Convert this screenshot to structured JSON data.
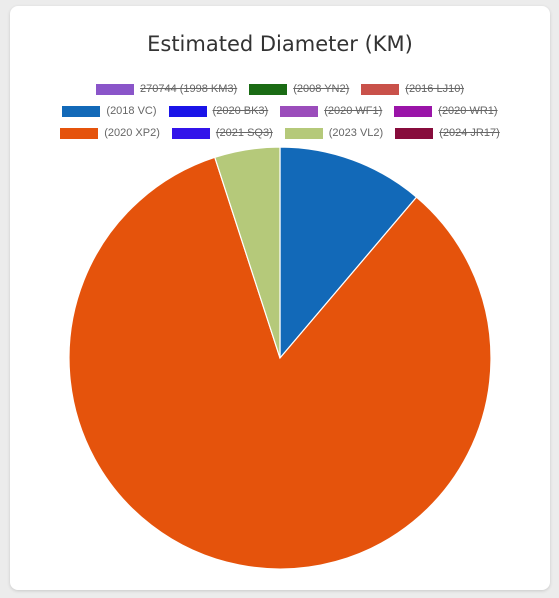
{
  "chart_data": {
    "type": "pie",
    "title": "Estimated Diameter (KM)",
    "legend_position": "top",
    "series": [
      {
        "name": "270744 (1998 KM3)",
        "color": "#8a55c9",
        "hidden": true,
        "value": null
      },
      {
        "name": "(2008 YN2)",
        "color": "#1a6b14",
        "hidden": true,
        "value": null
      },
      {
        "name": "(2016 LJ10)",
        "color": "#c9514a",
        "hidden": true,
        "value": null
      },
      {
        "name": "(2018 VC)",
        "color": "#1269b8",
        "hidden": false,
        "value": 0.112
      },
      {
        "name": "(2020 BK3)",
        "color": "#1a14e8",
        "hidden": true,
        "value": null
      },
      {
        "name": "(2020 WF1)",
        "color": "#9b4dbb",
        "hidden": true,
        "value": null
      },
      {
        "name": "(2020 WR1)",
        "color": "#9a14a8",
        "hidden": true,
        "value": null
      },
      {
        "name": "(2020 XP2)",
        "color": "#e5530c",
        "hidden": false,
        "value": 0.838
      },
      {
        "name": "(2021 SQ3)",
        "color": "#3314ea",
        "hidden": true,
        "value": null
      },
      {
        "name": "(2023 VL2)",
        "color": "#b5c97a",
        "hidden": false,
        "value": 0.05
      },
      {
        "name": "(2024 JR17)",
        "color": "#870c3c",
        "hidden": true,
        "value": null
      }
    ],
    "legend_rows": [
      [
        0,
        1,
        2
      ],
      [
        3,
        4,
        5,
        6
      ],
      [
        7,
        8,
        9,
        10
      ]
    ]
  }
}
